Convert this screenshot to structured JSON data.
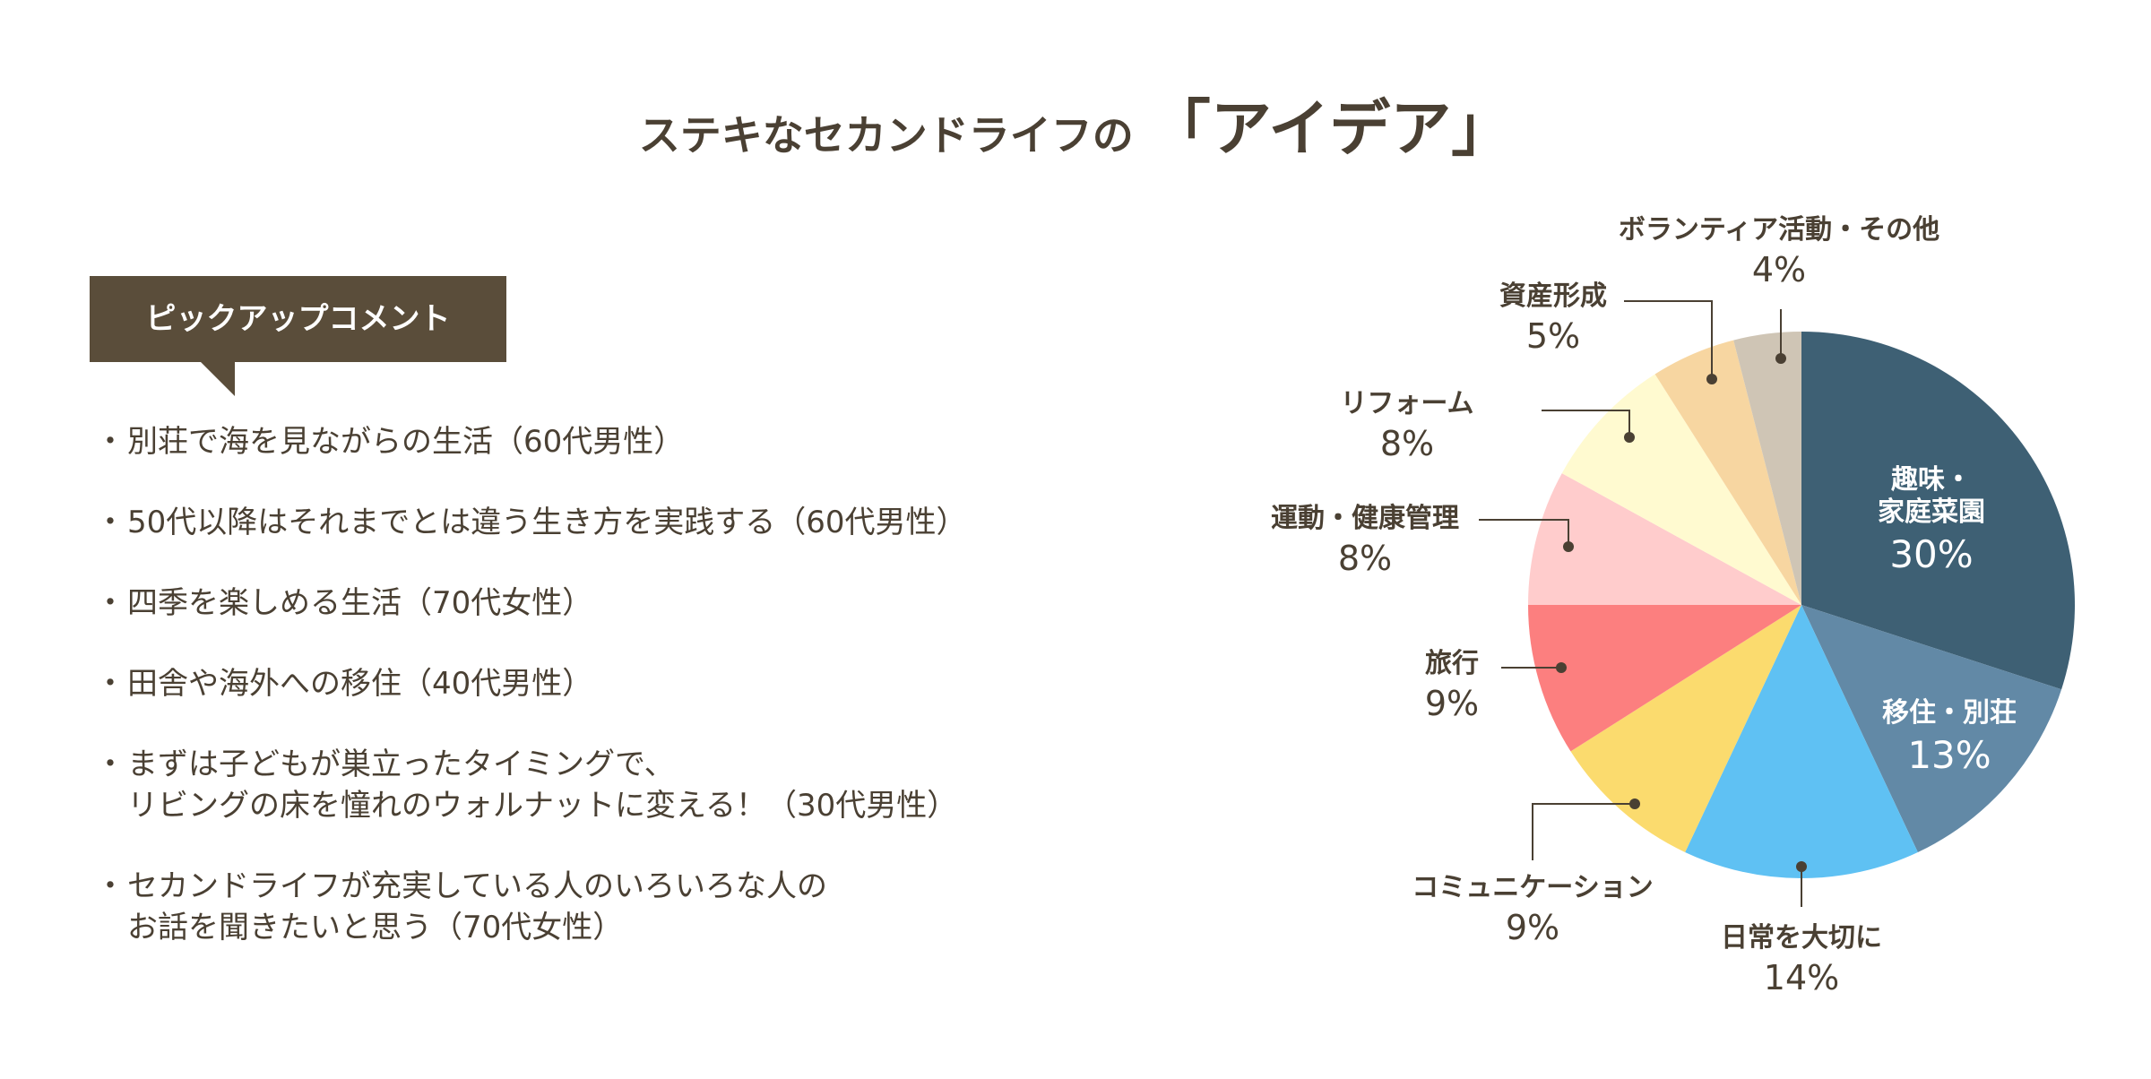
{
  "header": {
    "title_main": "ステキなセカンドライフの",
    "title_emphasis": "「アイデア」"
  },
  "pickup": {
    "label": "ピックアップコメント",
    "bullet": "・",
    "comments": [
      {
        "lines": [
          "別荘で海を見ながらの生活（60代男性）"
        ]
      },
      {
        "lines": [
          "50代以降はそれまでとは違う生き方を実践する（60代男性）"
        ]
      },
      {
        "lines": [
          "四季を楽しめる生活（70代女性）"
        ]
      },
      {
        "lines": [
          "田舎や海外への移住（40代男性）"
        ]
      },
      {
        "lines": [
          "まずは子どもが巣立ったタイミングで、",
          "リビングの床を憧れのウォルナットに変える！（30代男性）"
        ]
      },
      {
        "lines": [
          "セカンドライフが充実している人のいろいろな人の",
          "お話を聞きたいと思う（70代女性）"
        ]
      }
    ]
  },
  "chart_data": {
    "type": "pie",
    "unit": "%",
    "start": "12 o'clock, clockwise",
    "slices": [
      {
        "label": "趣味・家庭菜園",
        "label_lines": [
          "趣味・",
          "家庭菜園"
        ],
        "value": 30,
        "value_label": "30%",
        "color": "#3e6074"
      },
      {
        "label": "移住・別荘",
        "label_lines": [
          "移住・別荘"
        ],
        "value": 13,
        "value_label": "13%",
        "color": "#6289a6"
      },
      {
        "label": "日常を大切に",
        "label_lines": [
          "日常を大切に"
        ],
        "value": 14,
        "value_label": "14%",
        "color": "#5fc1f3"
      },
      {
        "label": "コミュニケーション",
        "label_lines": [
          "コミュニケーション"
        ],
        "value": 9,
        "value_label": "9%",
        "color": "#fbdb6e"
      },
      {
        "label": "旅行",
        "label_lines": [
          "旅行"
        ],
        "value": 9,
        "value_label": "9%",
        "color": "#fc7f7f"
      },
      {
        "label": "運動・健康管理",
        "label_lines": [
          "運動・健康管理"
        ],
        "value": 8,
        "value_label": "8%",
        "color": "#ffcccc"
      },
      {
        "label": "リフォーム",
        "label_lines": [
          "リフォーム"
        ],
        "value": 8,
        "value_label": "8%",
        "color": "#fffad0"
      },
      {
        "label": "資産形成",
        "label_lines": [
          "資産形成"
        ],
        "value": 5,
        "value_label": "5%",
        "color": "#f7d6a1"
      },
      {
        "label": "ボランティア活動・その他",
        "label_lines": [
          "ボランティア活動・その他"
        ],
        "value": 4,
        "value_label": "4%",
        "color": "#cfc5b5"
      }
    ],
    "label_text_color": "#4a4033",
    "inside_label_color": "#ffffff",
    "leader_color": "#4a4033"
  }
}
